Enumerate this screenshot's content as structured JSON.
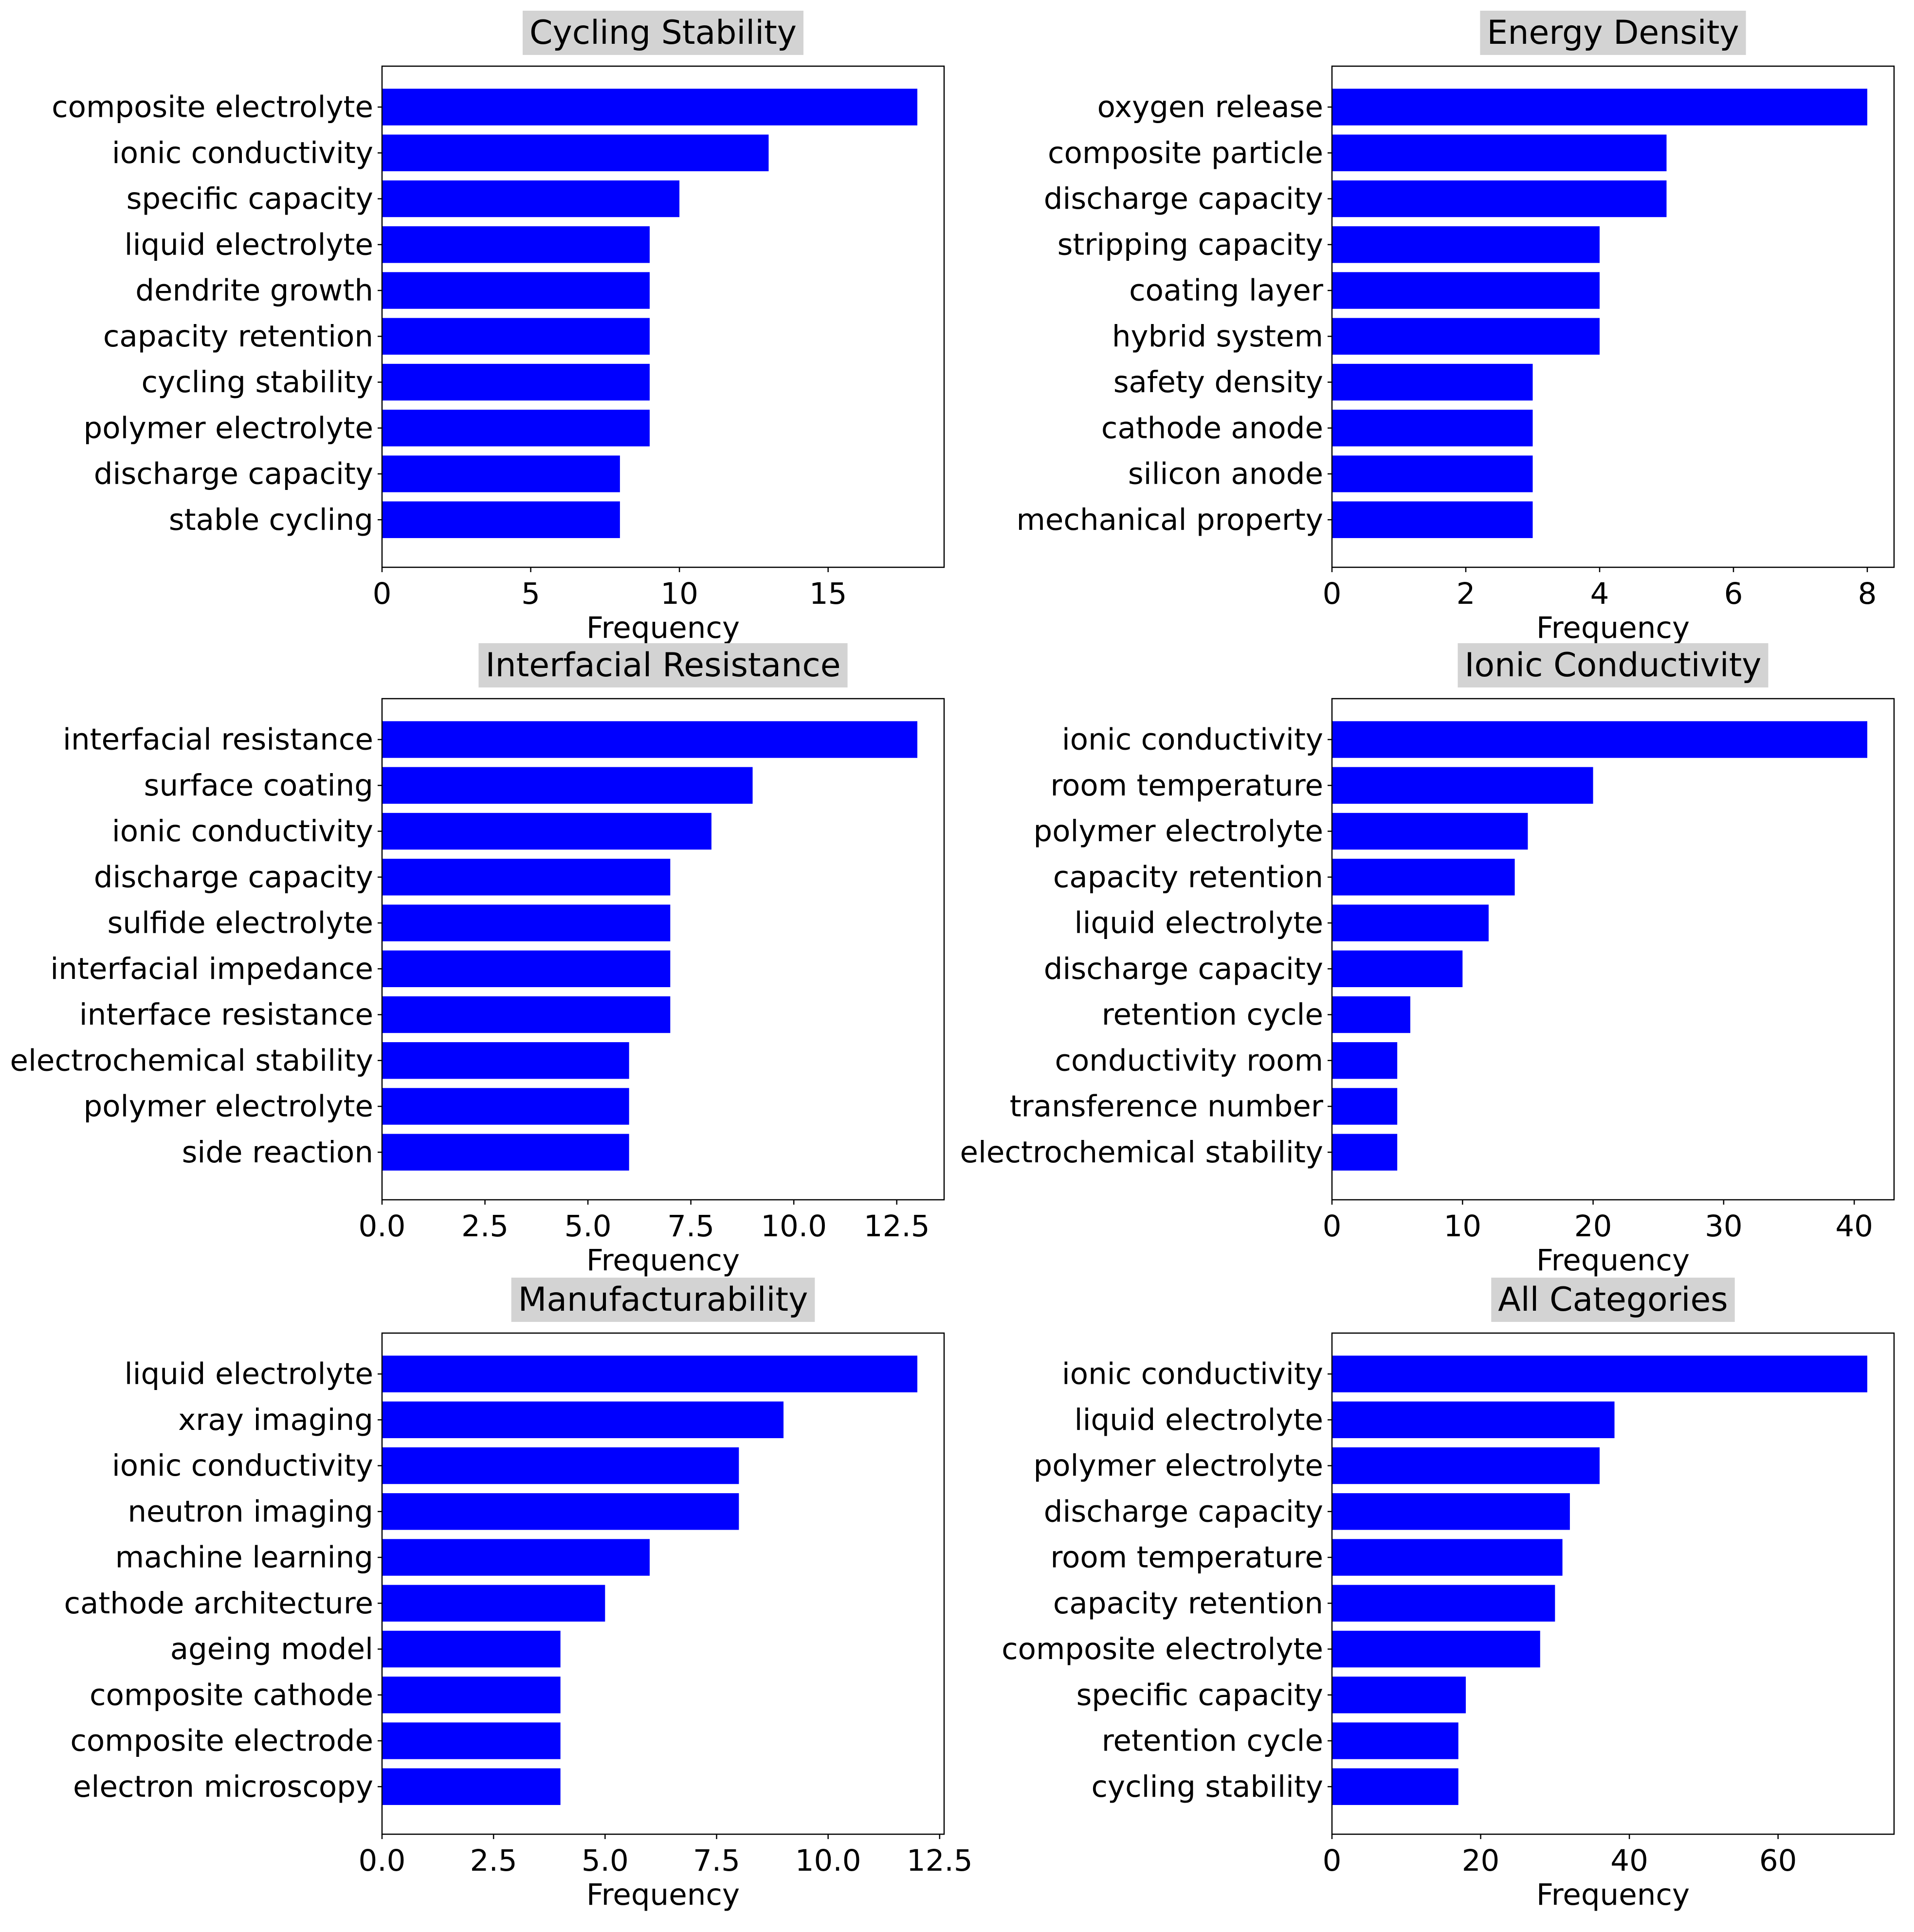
{
  "colors": {
    "bar": "#0000ff",
    "title_background": "#d3d3d3",
    "axes": "#000000",
    "background": "#ffffff"
  },
  "chart_data": [
    {
      "type": "bar",
      "orientation": "horizontal",
      "title": "Cycling Stability",
      "xlabel": "Frequency",
      "categories": [
        "composite electrolyte",
        "ionic conductivity",
        "specific capacity",
        "liquid electrolyte",
        "dendrite growth",
        "capacity retention",
        "cycling stability",
        "polymer electrolyte",
        "discharge capacity",
        "stable cycling"
      ],
      "values": [
        18,
        13,
        10,
        9,
        9,
        9,
        9,
        9,
        8,
        8
      ],
      "xlim": [
        0,
        18.9
      ],
      "xticks": [
        0,
        5,
        10,
        15
      ],
      "xtick_labels": [
        "0",
        "5",
        "10",
        "15"
      ],
      "grid": false
    },
    {
      "type": "bar",
      "orientation": "horizontal",
      "title": "Energy Density",
      "xlabel": "Frequency",
      "categories": [
        "oxygen release",
        "composite particle",
        "discharge capacity",
        "stripping capacity",
        "coating layer",
        "hybrid system",
        "safety density",
        "cathode anode",
        "silicon anode",
        "mechanical property"
      ],
      "values": [
        8,
        5,
        5,
        4,
        4,
        4,
        3,
        3,
        3,
        3
      ],
      "xlim": [
        0,
        8.4
      ],
      "xticks": [
        0,
        2,
        4,
        6,
        8
      ],
      "xtick_labels": [
        "0",
        "2",
        "4",
        "6",
        "8"
      ],
      "grid": false
    },
    {
      "type": "bar",
      "orientation": "horizontal",
      "title": "Interfacial Resistance",
      "xlabel": "Frequency",
      "categories": [
        "interfacial resistance",
        "surface coating",
        "ionic conductivity",
        "discharge capacity",
        "sulfide electrolyte",
        "interfacial impedance",
        "interface resistance",
        "electrochemical stability",
        "polymer electrolyte",
        "side reaction"
      ],
      "values": [
        13,
        9,
        8,
        7,
        7,
        7,
        7,
        6,
        6,
        6
      ],
      "xlim": [
        0,
        13.65
      ],
      "xticks": [
        0,
        2.5,
        5,
        7.5,
        10,
        12.5
      ],
      "xtick_labels": [
        "0.0",
        "2.5",
        "5.0",
        "7.5",
        "10.0",
        "12.5"
      ],
      "grid": false
    },
    {
      "type": "bar",
      "orientation": "horizontal",
      "title": "Ionic Conductivity",
      "xlabel": "Frequency",
      "categories": [
        "ionic conductivity",
        "room temperature",
        "polymer electrolyte",
        "capacity retention",
        "liquid electrolyte",
        "discharge capacity",
        "retention cycle",
        "conductivity room",
        "transference number",
        "electrochemical stability"
      ],
      "values": [
        41,
        20,
        15,
        14,
        12,
        10,
        6,
        5,
        5,
        5
      ],
      "xlim": [
        0,
        43.05
      ],
      "xticks": [
        0,
        10,
        20,
        30,
        40
      ],
      "xtick_labels": [
        "0",
        "10",
        "20",
        "30",
        "40"
      ],
      "grid": false
    },
    {
      "type": "bar",
      "orientation": "horizontal",
      "title": "Manufacturability",
      "xlabel": "Frequency",
      "categories": [
        "liquid electrolyte",
        "xray imaging",
        "ionic conductivity",
        "neutron imaging",
        "machine learning",
        "cathode architecture",
        "ageing model",
        "composite cathode",
        "composite electrode",
        "electron microscopy"
      ],
      "values": [
        12,
        9,
        8,
        8,
        6,
        5,
        4,
        4,
        4,
        4
      ],
      "xlim": [
        0,
        12.6
      ],
      "xticks": [
        0,
        2.5,
        5,
        7.5,
        10,
        12.5
      ],
      "xtick_labels": [
        "0.0",
        "2.5",
        "5.0",
        "7.5",
        "10.0",
        "12.5"
      ],
      "grid": false
    },
    {
      "type": "bar",
      "orientation": "horizontal",
      "title": "All Categories",
      "xlabel": "Frequency",
      "categories": [
        "ionic conductivity",
        "liquid electrolyte",
        "polymer electrolyte",
        "discharge capacity",
        "room temperature",
        "capacity retention",
        "composite electrolyte",
        "specific capacity",
        "retention cycle",
        "cycling stability"
      ],
      "values": [
        72,
        38,
        36,
        32,
        31,
        30,
        28,
        18,
        17,
        17
      ],
      "xlim": [
        0,
        75.6
      ],
      "xticks": [
        0,
        20,
        40,
        60
      ],
      "xtick_labels": [
        "0",
        "20",
        "40",
        "60"
      ],
      "grid": false
    }
  ]
}
